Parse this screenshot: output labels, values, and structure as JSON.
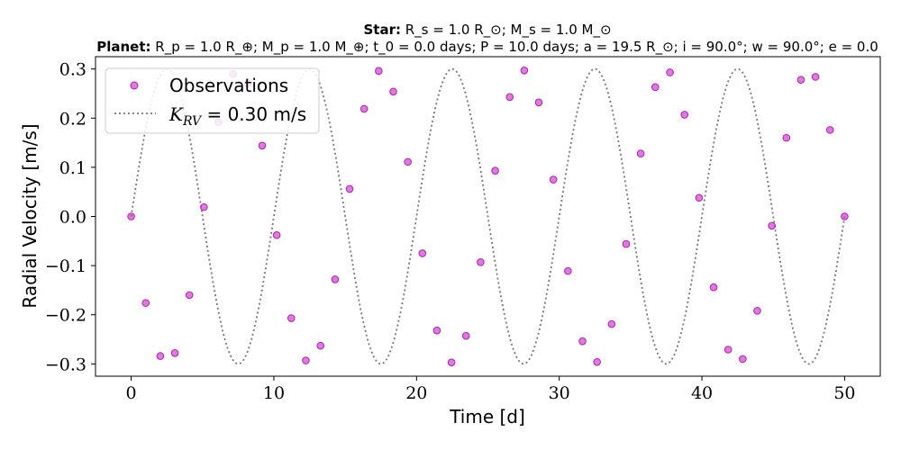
{
  "title": {
    "star_prefix": "Star:",
    "star_text": "R_s = 1.0 R_⊙; M_s = 1.0 M_⊙",
    "planet_prefix": "Planet:",
    "planet_text": "R_p = 1.0 R_⊕; M_p = 1.0 M_⊕; t_0 = 0.0 days; P = 10.0 days; a = 19.5 R_⊙; i = 90.0°; w = 90.0°; e = 0.0"
  },
  "chart_data": {
    "type": "scatter",
    "xlabel": "Time [d]",
    "ylabel": "Radial Velocity [m/s]",
    "xlim": [
      -2.5,
      52.5
    ],
    "ylim": [
      -0.325,
      0.325
    ],
    "xticks": [
      0,
      10,
      20,
      30,
      40,
      50
    ],
    "yticks": [
      -0.3,
      -0.2,
      -0.1,
      0.0,
      0.1,
      0.2,
      0.3
    ],
    "xtick_labels": [
      "0",
      "10",
      "20",
      "30",
      "40",
      "50"
    ],
    "ytick_labels": [
      "−0.3",
      "−0.2",
      "−0.1",
      "0.0",
      "0.1",
      "0.2",
      "0.3"
    ],
    "grid": false,
    "legend_position": "upper-left",
    "series": [
      {
        "name": "Observations",
        "kind": "points",
        "color": "#cc33cc",
        "x": [
          0,
          1.02,
          2.04,
          3.06,
          4.08,
          5.1,
          6.12,
          7.14,
          8.16,
          9.18,
          10.2,
          11.22,
          12.24,
          13.27,
          14.29,
          15.31,
          16.33,
          17.35,
          18.37,
          19.39,
          20.41,
          21.43,
          22.45,
          23.47,
          24.49,
          25.51,
          26.53,
          27.55,
          28.57,
          29.59,
          30.61,
          31.63,
          32.65,
          33.67,
          34.69,
          35.71,
          36.73,
          37.76,
          38.78,
          39.8,
          40.82,
          41.84,
          42.86,
          43.88,
          44.9,
          45.92,
          46.94,
          47.96,
          48.98,
          50.0
        ],
        "y": [
          0.0,
          -0.176,
          -0.284,
          -0.278,
          -0.16,
          0.019,
          0.192,
          0.29,
          0.271,
          0.144,
          -0.038,
          -0.207,
          -0.293,
          -0.263,
          -0.128,
          0.056,
          0.219,
          0.296,
          0.254,
          0.111,
          -0.075,
          -0.232,
          -0.297,
          -0.243,
          -0.093,
          0.093,
          0.243,
          0.297,
          0.232,
          0.075,
          -0.111,
          -0.254,
          -0.296,
          -0.219,
          -0.056,
          0.128,
          0.263,
          0.293,
          0.207,
          0.038,
          -0.144,
          -0.271,
          -0.29,
          -0.192,
          -0.019,
          0.16,
          0.278,
          0.284,
          0.176,
          0.0
        ]
      },
      {
        "name": "K_RV = 0.30 m/s",
        "kind": "model",
        "function": "0.30*sin(2*pi*t/10)",
        "K": 0.3,
        "period": 10.0,
        "color": "#777777",
        "style": "dotted"
      }
    ]
  },
  "legend": {
    "observations_label": "Observations",
    "model_label_var": "K",
    "model_label_sub": "RV",
    "model_label_rest": " = 0.30 m/s"
  }
}
